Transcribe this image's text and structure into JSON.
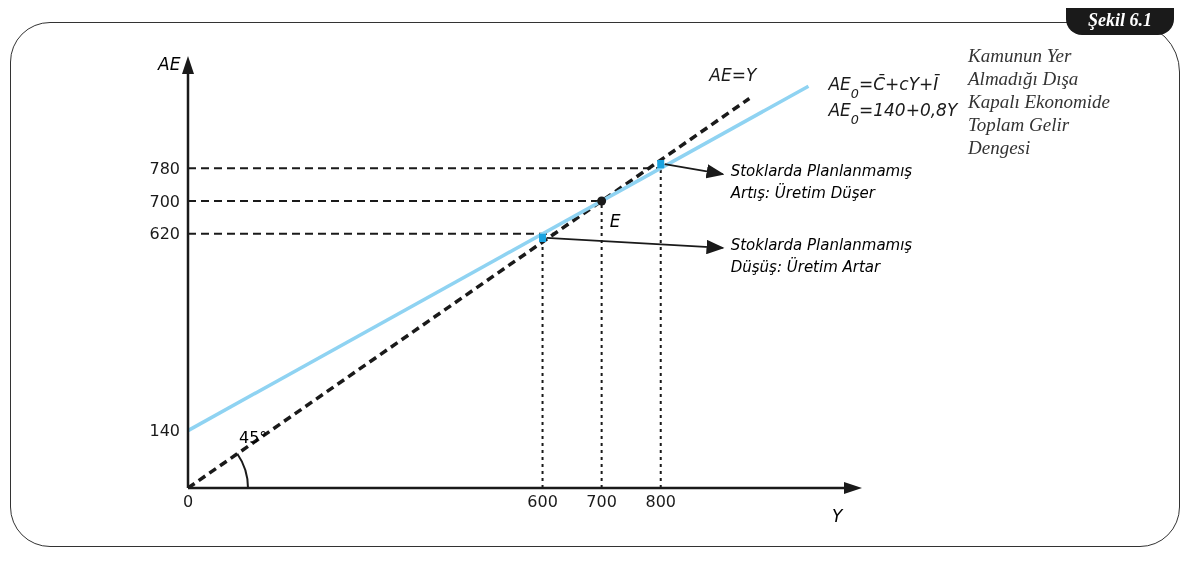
{
  "chart_data": {
    "type": "line",
    "title": "Şekil 6.1",
    "subtitle": "Kamunun Yer Almadığı Dışa Kapalı Ekonomide Toplam Gelir Dengesi",
    "xlabel": "Y",
    "ylabel": "AE",
    "xlim": [
      0,
      1100
    ],
    "ylim": [
      0,
      1000
    ],
    "xticks": [
      0,
      600,
      700,
      800
    ],
    "yticks": [
      140,
      620,
      700,
      780
    ],
    "marker": "none",
    "series": [
      {
        "name": "AE=Y",
        "color": "#1a1a1a",
        "line_style": "dashed",
        "x": [
          0,
          950
        ],
        "values": [
          0,
          950
        ]
      },
      {
        "name": "AE$_{0}$=C̄+cY+Ī\nAE$_{0}$=140+0,8Y",
        "color": "#8fd3f2",
        "line_style": "solid",
        "x": [
          0,
          1050
        ],
        "values": [
          140,
          980
        ]
      },
      {
        "color": "#1aa3e0",
        "line_style": "solid",
        "x": [
          600,
          600,
          700,
          800,
          800
        ],
        "values": [
          600,
          620,
          null,
          780,
          800
        ]
      },
      {
        "type": "scatter",
        "color": "#1a1a1a",
        "marker": "circle",
        "x": [
          700
        ],
        "values": [
          700
        ]
      }
    ],
    "ref_lines": [
      {
        "axis": "x",
        "value": 600,
        "color": "#1a1a1a",
        "line_style": "dotted"
      },
      {
        "axis": "x",
        "value": 700,
        "color": "#1a1a1a",
        "line_style": "dotted"
      },
      {
        "axis": "x",
        "value": 800,
        "color": "#1a1a1a",
        "line_style": "dotted"
      },
      {
        "axis": "y",
        "value": 620,
        "color": "#1a1a1a",
        "line_style": "dashed"
      },
      {
        "axis": "y",
        "value": 700,
        "color": "#1a1a1a",
        "line_style": "dashed"
      },
      {
        "axis": "y",
        "value": 780,
        "color": "#1a1a1a",
        "line_style": "dashed"
      }
    ],
    "annotations": [
      {
        "text": "E",
        "x": 700,
        "y": 700
      },
      {
        "text": "Stoklarda Planlanmamış\nArtış: Üretim Düşer",
        "x": 800,
        "y": 790
      },
      {
        "text": "Stoklarda Planlanmamış\nDüşüş: Üretim Artar",
        "x": 600,
        "y": 610
      },
      "45°"
    ]
  }
}
